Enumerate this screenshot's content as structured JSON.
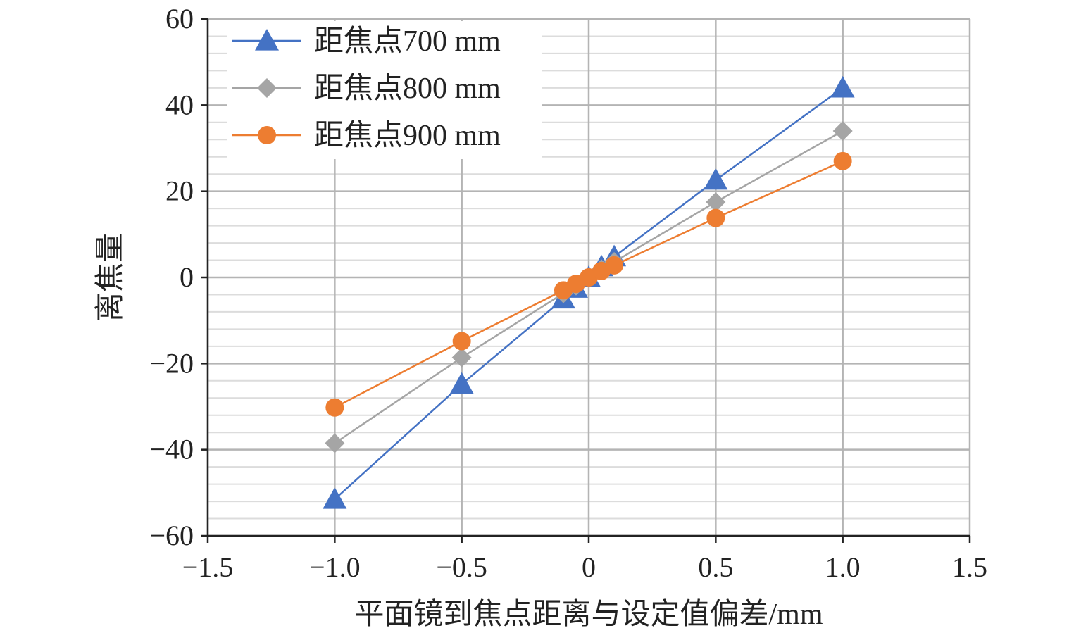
{
  "chart_data": {
    "type": "line",
    "title": "",
    "xlabel": "平面镜到焦点距离与设定值偏差/mm",
    "ylabel": "离焦量",
    "xlim": [
      -1.5,
      1.5
    ],
    "ylim": [
      -60,
      60
    ],
    "x_ticks": [
      -1.5,
      -1.0,
      -0.5,
      0,
      0.5,
      1.0,
      1.5
    ],
    "x_tick_labels": [
      "−1.5",
      "−1.0",
      "−0.5",
      "0",
      "0.5",
      "1.0",
      "1.5"
    ],
    "y_ticks": [
      -60,
      -40,
      -20,
      0,
      20,
      40,
      60
    ],
    "y_tick_labels": [
      "−60",
      "−40",
      "−20",
      "0",
      "20",
      "40",
      "60"
    ],
    "grid": "on",
    "legend_position": "top-left",
    "x": [
      -1.0,
      -0.5,
      -0.1,
      -0.05,
      0,
      0.05,
      0.1,
      0.5,
      1.0
    ],
    "series": [
      {
        "name": "距焦点700 mm",
        "color": "#4472C4",
        "marker": "triangle",
        "values": [
          -51.5,
          -24.8,
          -5.0,
          -2.5,
          0,
          2.5,
          4.8,
          22.6,
          44.0
        ]
      },
      {
        "name": "距焦点800 mm",
        "color": "#A5A5A5",
        "marker": "diamond",
        "values": [
          -38.5,
          -18.6,
          -3.7,
          -1.9,
          0,
          1.9,
          3.6,
          17.5,
          34.0
        ]
      },
      {
        "name": "距焦点900 mm",
        "color": "#ED7D31",
        "marker": "circle",
        "values": [
          -30.2,
          -14.8,
          -3.0,
          -1.5,
          0,
          1.5,
          2.8,
          13.8,
          27.0
        ]
      }
    ]
  }
}
